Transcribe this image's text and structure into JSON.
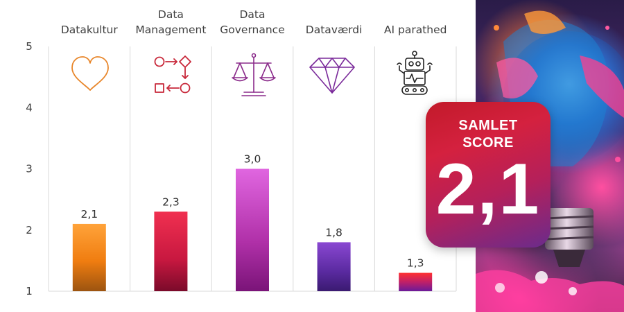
{
  "chart_data": {
    "type": "bar",
    "categories": [
      "Datakultur",
      "Data Management",
      "Data Governance",
      "Dataværdi",
      "AI parathed"
    ],
    "category_label_lines": [
      [
        "Datakultur"
      ],
      [
        "Data",
        "Management"
      ],
      [
        "Data",
        "Governance"
      ],
      [
        "Dataværdi"
      ],
      [
        "AI parathed"
      ]
    ],
    "values": [
      2.1,
      2.3,
      3.0,
      1.8,
      1.3
    ],
    "value_labels": [
      "2,1",
      "2,3",
      "3,0",
      "1,8",
      "1,3"
    ],
    "yticks": [
      1,
      2,
      3,
      4,
      5
    ],
    "ylim": [
      1,
      5
    ],
    "grid": "vertical",
    "title": "",
    "xlabel": "",
    "ylabel": ""
  },
  "icons": [
    "heart-icon",
    "process-flow-icon",
    "scales-icon",
    "diamond-icon",
    "robot-icon"
  ],
  "colors": {
    "datakultur": [
      "#ffa33a",
      "#9c5410"
    ],
    "data_management": [
      "#f03050",
      "#7a0a2a"
    ],
    "data_governance": [
      "#e066e0",
      "#7a1478"
    ],
    "dataværdi": [
      "#8a48d2",
      "#3a1a70"
    ],
    "ai_parathed": [
      "#ff3030",
      "#6a1a9a"
    ],
    "icon_heart": "#e8862a",
    "icon_management": "#c8283a",
    "icon_governance": "#8a2a8a",
    "icon_diamond": "#7a2a9a",
    "icon_robot": "#222222"
  },
  "score_card": {
    "label_line1": "SAMLET",
    "label_line2": "SCORE",
    "value": "2,1"
  }
}
